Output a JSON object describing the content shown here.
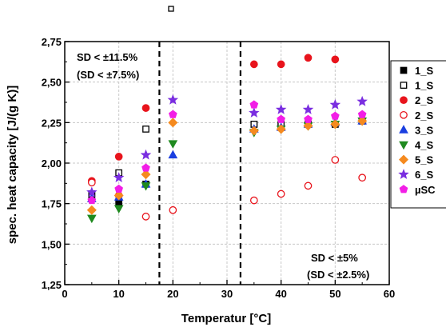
{
  "chart_data": {
    "type": "scatter",
    "title": "",
    "xlabel": "Temperatur [°C]",
    "ylabel": "spec. heat capacity [J/(g K)]",
    "xlim": [
      0,
      60
    ],
    "ylim": [
      1.25,
      2.75
    ],
    "xticks": [
      "0",
      "10",
      "20",
      "30",
      "40",
      "50",
      "60"
    ],
    "yticks": [
      "1,25",
      "1,50",
      "1,75",
      "2,00",
      "2,25",
      "2,50",
      "2,75"
    ],
    "grid": true,
    "legend_position": "right",
    "annotations": [
      {
        "line1": "SD < ±11.5%",
        "line2": "(SD < ±7.5%)"
      },
      {
        "line1": "SD < ±5%",
        "line2": "(SD < ±2.5%)"
      }
    ],
    "vlines": [
      17.5,
      32.5
    ],
    "series": [
      {
        "name": "1_S",
        "marker": "square",
        "fill": "#000000",
        "stroke": "#000000",
        "points": [
          [
            5,
            1.8
          ],
          [
            10,
            1.75
          ],
          [
            15,
            1.87
          ],
          [
            35,
            2.24
          ],
          [
            40,
            2.23
          ],
          [
            45,
            2.24
          ],
          [
            50,
            2.24
          ],
          [
            55,
            2.26
          ]
        ]
      },
      {
        "name": "1_S",
        "marker": "square-open",
        "fill": "none",
        "stroke": "#000000",
        "points": [
          [
            5,
            1.81
          ],
          [
            10,
            1.94
          ],
          [
            15,
            2.21
          ],
          [
            35,
            2.24
          ],
          [
            40,
            2.24
          ],
          [
            45,
            2.24
          ],
          [
            50,
            2.24
          ],
          [
            55,
            2.26
          ]
        ]
      },
      {
        "name": "2_S",
        "marker": "circle",
        "fill": "#e8141c",
        "stroke": "#e8141c",
        "points": [
          [
            5,
            1.89
          ],
          [
            10,
            2.04
          ],
          [
            15,
            2.34
          ],
          [
            35,
            2.61
          ],
          [
            40,
            2.61
          ],
          [
            45,
            2.65
          ],
          [
            50,
            2.64
          ]
        ]
      },
      {
        "name": "2_S",
        "marker": "circle-open",
        "fill": "none",
        "stroke": "#e8141c",
        "points": [
          [
            5,
            1.88
          ],
          [
            10,
            1.8
          ],
          [
            15,
            1.67
          ],
          [
            20,
            1.71
          ],
          [
            35,
            1.77
          ],
          [
            40,
            1.81
          ],
          [
            45,
            1.86
          ],
          [
            50,
            2.02
          ],
          [
            55,
            1.91
          ]
        ]
      },
      {
        "name": "3_S",
        "marker": "triangle-up",
        "fill": "#1a3fe0",
        "stroke": "#1a3fe0",
        "points": [
          [
            5,
            1.78
          ],
          [
            10,
            1.79
          ],
          [
            15,
            1.87
          ],
          [
            20,
            2.05
          ],
          [
            35,
            2.21
          ],
          [
            40,
            2.22
          ],
          [
            45,
            2.24
          ],
          [
            50,
            2.25
          ],
          [
            55,
            2.26
          ]
        ]
      },
      {
        "name": "4_S",
        "marker": "triangle-down",
        "fill": "#1f8a1f",
        "stroke": "#1f8a1f",
        "points": [
          [
            5,
            1.66
          ],
          [
            10,
            1.72
          ],
          [
            15,
            1.86
          ],
          [
            20,
            2.12
          ],
          [
            35,
            2.19
          ],
          [
            40,
            2.21
          ],
          [
            45,
            2.23
          ],
          [
            50,
            2.24
          ],
          [
            55,
            2.26
          ]
        ]
      },
      {
        "name": "5_S",
        "marker": "diamond",
        "fill": "#f58a1f",
        "stroke": "#f58a1f",
        "points": [
          [
            5,
            1.71
          ],
          [
            10,
            1.8
          ],
          [
            15,
            1.93
          ],
          [
            20,
            2.25
          ],
          [
            35,
            2.2
          ],
          [
            40,
            2.21
          ],
          [
            45,
            2.23
          ],
          [
            50,
            2.24
          ],
          [
            55,
            2.26
          ]
        ]
      },
      {
        "name": "6_S",
        "marker": "star",
        "fill": "#7a2ee0",
        "stroke": "#7a2ee0",
        "points": [
          [
            5,
            1.82
          ],
          [
            10,
            1.91
          ],
          [
            15,
            2.05
          ],
          [
            20,
            2.39
          ],
          [
            35,
            2.31
          ],
          [
            40,
            2.33
          ],
          [
            45,
            2.33
          ],
          [
            50,
            2.36
          ],
          [
            55,
            2.38
          ]
        ]
      },
      {
        "name": "µSC",
        "marker": "pentagon",
        "fill": "#f21ee6",
        "stroke": "#f21ee6",
        "points": [
          [
            5,
            1.77
          ],
          [
            10,
            1.84
          ],
          [
            15,
            1.97
          ],
          [
            20,
            2.3
          ],
          [
            35,
            2.36
          ],
          [
            40,
            2.27
          ],
          [
            45,
            2.27
          ],
          [
            50,
            2.29
          ],
          [
            55,
            2.3
          ]
        ]
      }
    ]
  }
}
